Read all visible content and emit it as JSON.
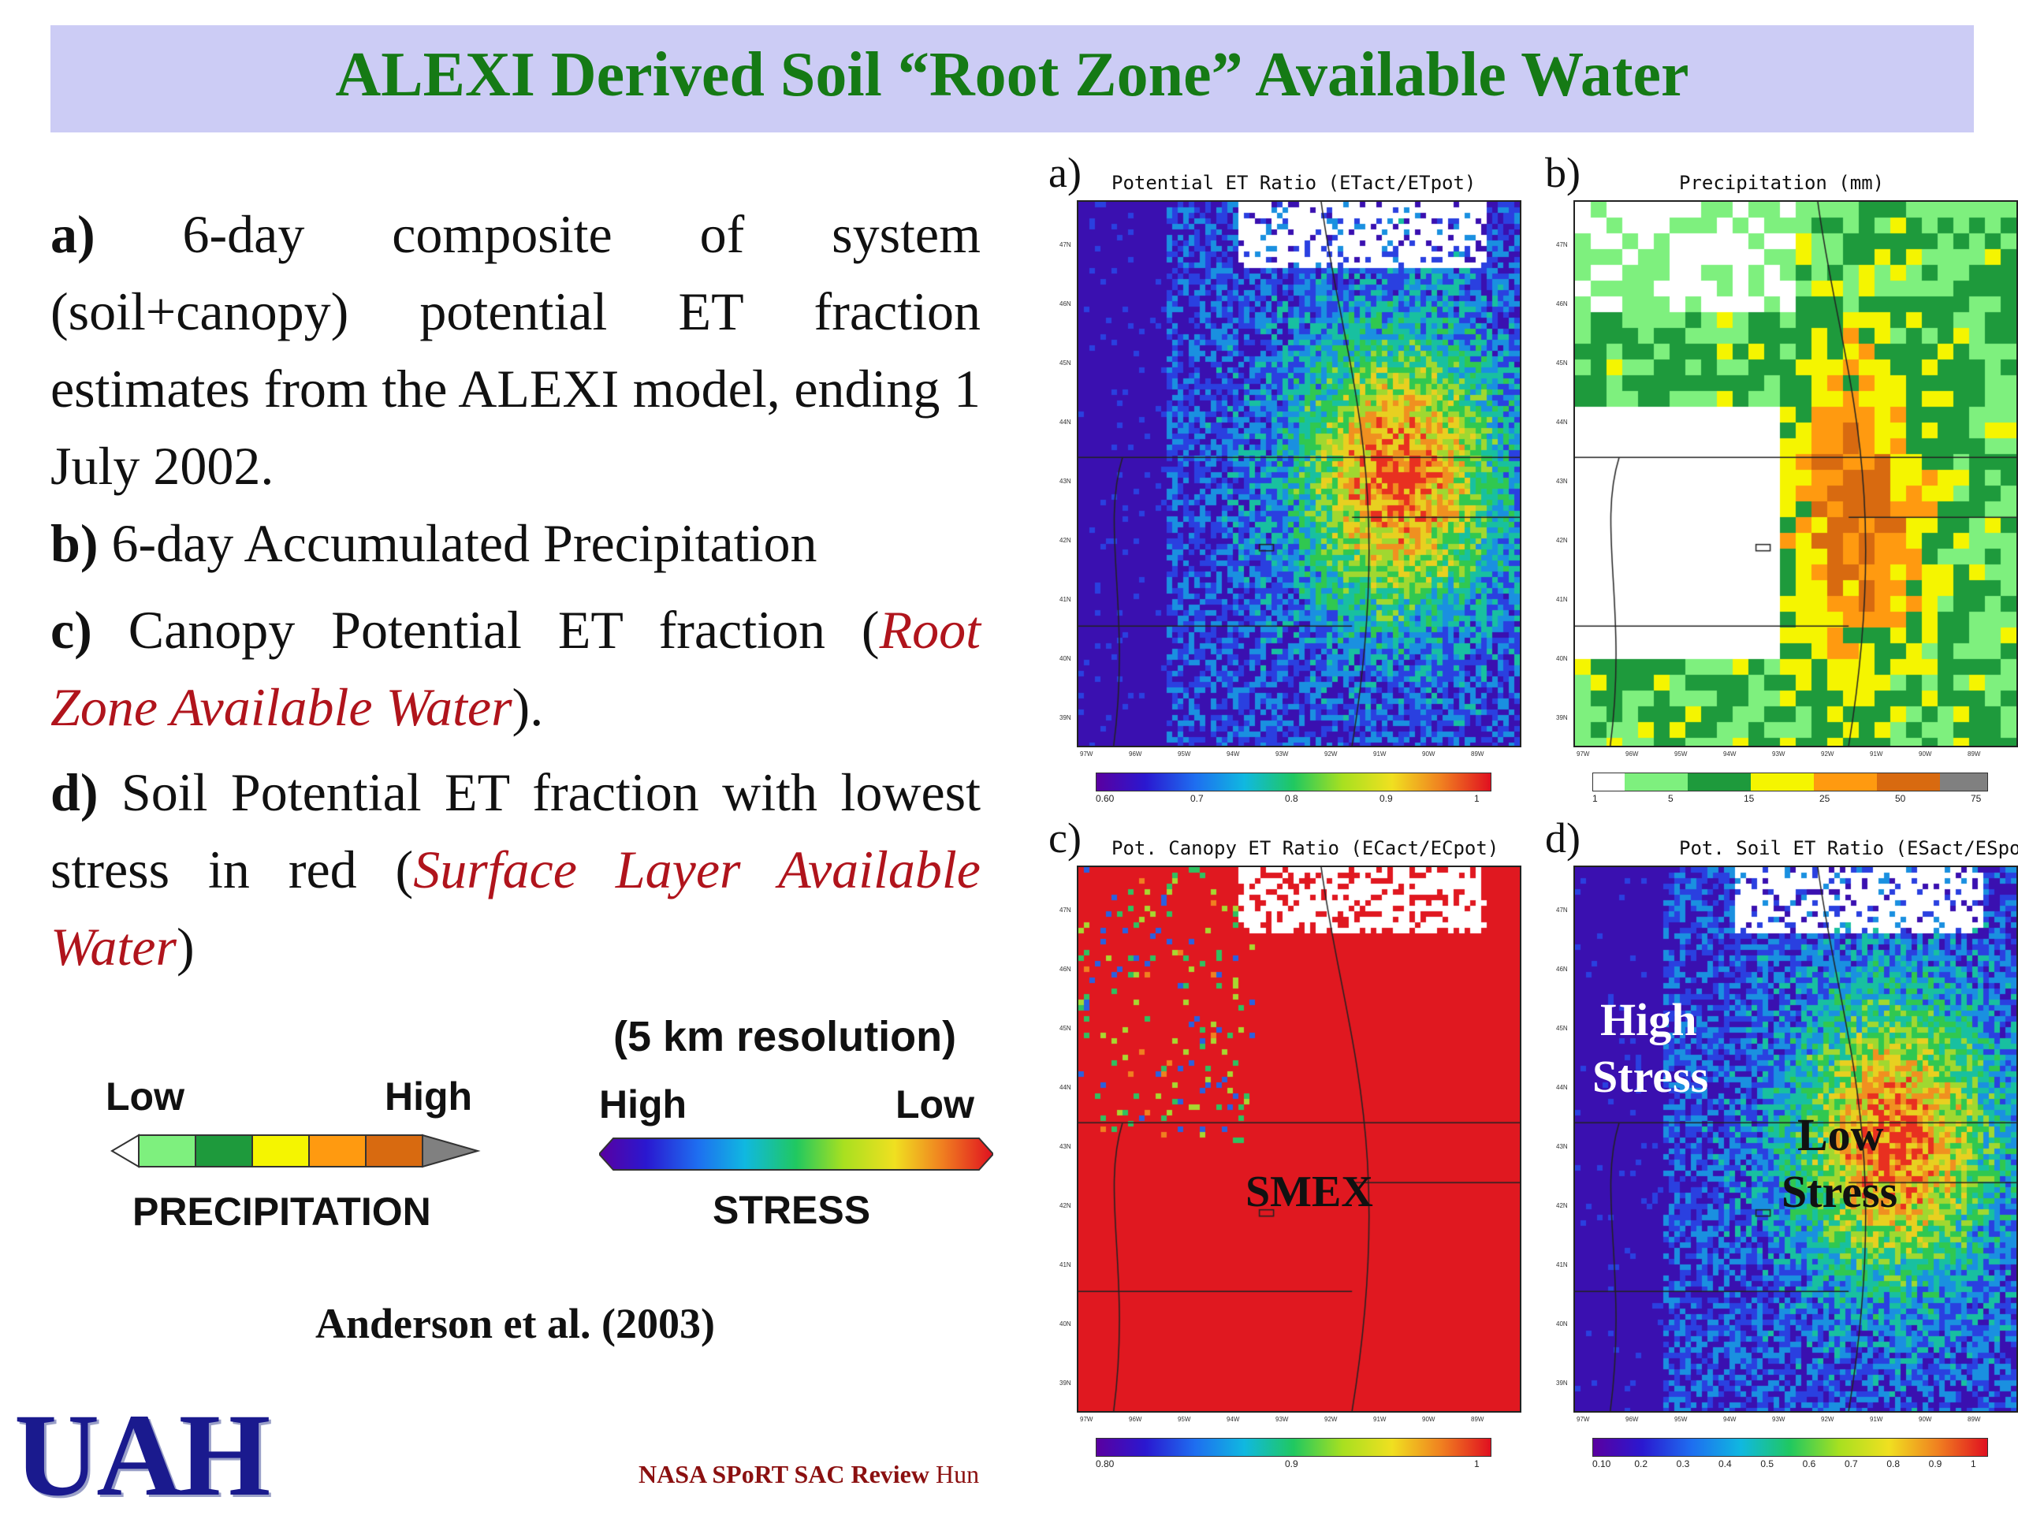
{
  "slide": {
    "title": "ALEXI Derived Soil “Root Zone” Available Water",
    "items": {
      "a_letter": "a)",
      "a_text": " 6-day composite of system (soil+canopy) potential ET fraction estimates from the ALEXI model, ending 1 July 2002.",
      "b_letter": "b)",
      "b_text": " 6-day Accumulated Precipitation",
      "c_letter": "c)",
      "c_text_before": " Canopy Potential ET fraction (",
      "c_red": "Root Zone Available Water",
      "c_text_after": ").",
      "d_letter": "d)",
      "d_text_before": " Soil Potential ET fraction with lowest stress in red (",
      "d_red": "Surface Layer Available Water",
      "d_text_after": ")"
    },
    "resolution": "(5 km resolution)",
    "precip_legend": {
      "low": "Low",
      "high": "High",
      "label": "PRECIPITATION",
      "colors": [
        "#ffffff",
        "#7ef07e",
        "#1e9a3c",
        "#f5f500",
        "#ff9a10",
        "#d86a10",
        "#808080"
      ]
    },
    "stress_legend": {
      "high": "High",
      "low": "Low",
      "label": "STRESS"
    },
    "citation": "Anderson et al. (2003)",
    "logo": "UAH",
    "footer": {
      "bold": "NASA SPoRT SAC Review ",
      "plain": "Hun"
    }
  },
  "panels": [
    {
      "letter": "a)",
      "title": "Potential ET Ratio (ETact/ETpot)",
      "scheme": "stress_a",
      "cbar_ticks": [
        "0.60",
        "0.7",
        "0.8",
        "0.9",
        "1"
      ],
      "overlays": []
    },
    {
      "letter": "b)",
      "title": "Precipitation (mm)",
      "scheme": "precip",
      "cbar_ticks": [
        "1",
        "5",
        "15",
        "25",
        "50",
        "75"
      ],
      "overlays": []
    },
    {
      "letter": "c)",
      "title": "Pot. Canopy ET Ratio (ECact/ECpot)",
      "scheme": "canopy",
      "cbar_ticks": [
        "0.80",
        "0.9",
        "1"
      ],
      "overlays": [
        "SMEX"
      ]
    },
    {
      "letter": "d)",
      "title": "Pot. Soil ET Ratio (ESact/ESpot)",
      "scheme": "soil",
      "cbar_ticks": [
        "0.10",
        "0.2",
        "0.3",
        "0.4",
        "0.5",
        "0.6",
        "0.7",
        "0.8",
        "0.9",
        "1"
      ],
      "overlays": [
        "High",
        "Stress",
        "Low",
        "Stress"
      ]
    }
  ],
  "lat_ticks": [
    "47N",
    "46N",
    "45N",
    "44N",
    "43N",
    "42N",
    "41N",
    "40N",
    "39N"
  ],
  "lon_ticks": [
    "97W",
    "96W",
    "95W",
    "94W",
    "93W",
    "92W",
    "91W",
    "90W",
    "89W"
  ]
}
